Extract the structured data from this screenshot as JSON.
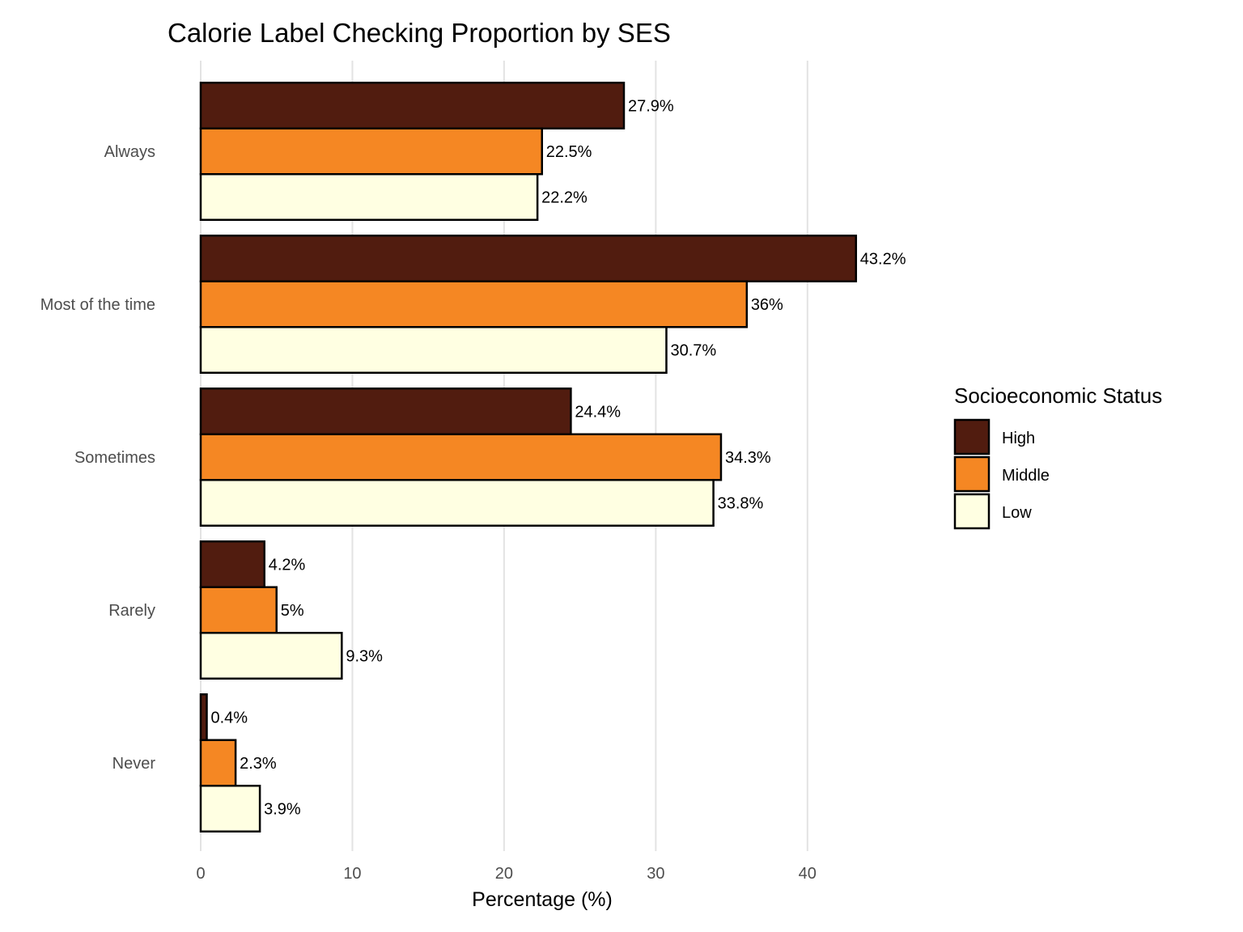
{
  "chart_data": {
    "type": "bar",
    "orientation": "horizontal",
    "title": "Calorie Label Checking Proportion by SES",
    "xlabel": "Percentage (%)",
    "ylabel": "",
    "xlim": [
      0,
      45
    ],
    "x_ticks": [
      0,
      10,
      20,
      30,
      40
    ],
    "grid": "vertical major gridlines",
    "categories": [
      "Always",
      "Most of the time",
      "Sometimes",
      "Rarely",
      "Never"
    ],
    "series": [
      {
        "name": "High",
        "color": "#511c0f",
        "values": [
          27.9,
          43.2,
          24.4,
          4.2,
          0.4
        ],
        "labels": [
          "27.9%",
          "43.2%",
          "24.4%",
          "4.2%",
          "0.4%"
        ]
      },
      {
        "name": "Middle",
        "color": "#f58723",
        "values": [
          22.5,
          36,
          34.3,
          5,
          2.3
        ],
        "labels": [
          "22.5%",
          "36%",
          "34.3%",
          "5%",
          "2.3%"
        ]
      },
      {
        "name": "Low",
        "color": "#ffffe2",
        "values": [
          22.2,
          30.7,
          33.8,
          9.3,
          3.9
        ],
        "labels": [
          "22.2%",
          "30.7%",
          "33.8%",
          "9.3%",
          "3.9%"
        ]
      }
    ],
    "legend": {
      "title": "Socioeconomic Status",
      "position": "right"
    }
  }
}
